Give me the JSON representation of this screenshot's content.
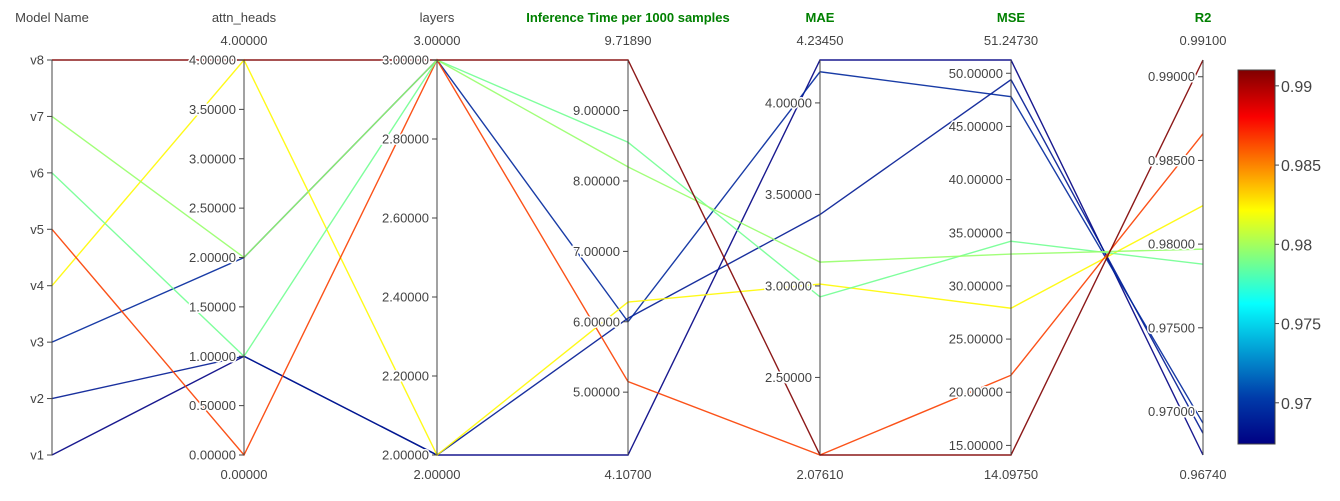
{
  "chart_data": {
    "type": "parallel_coordinates",
    "axes": [
      {
        "id": "model_name",
        "label": "Model Name",
        "label_color": "#444444",
        "categorical": true,
        "categories": [
          "v1",
          "v2",
          "v3",
          "v4",
          "v5",
          "v6",
          "v7",
          "v8"
        ],
        "range_min_label": "",
        "range_max_label": ""
      },
      {
        "id": "attn_heads",
        "label": "attn_heads",
        "label_color": "#444444",
        "range": [
          0,
          4
        ],
        "range_min_label": "0.00000",
        "range_max_label": "4.00000",
        "ticks": [
          {
            "value": 0,
            "label": "0.00000"
          },
          {
            "value": 0.5,
            "label": "0.50000"
          },
          {
            "value": 1,
            "label": "1.00000"
          },
          {
            "value": 1.5,
            "label": "1.50000"
          },
          {
            "value": 2,
            "label": "2.00000"
          },
          {
            "value": 2.5,
            "label": "2.50000"
          },
          {
            "value": 3,
            "label": "3.00000"
          },
          {
            "value": 3.5,
            "label": "3.50000"
          },
          {
            "value": 4,
            "label": "4.00000"
          }
        ]
      },
      {
        "id": "layers",
        "label": "layers",
        "label_color": "#444444",
        "range": [
          2,
          3
        ],
        "range_min_label": "2.00000",
        "range_max_label": "3.00000",
        "ticks": [
          {
            "value": 2,
            "label": "2.00000"
          },
          {
            "value": 2.2,
            "label": "2.20000"
          },
          {
            "value": 2.4,
            "label": "2.40000"
          },
          {
            "value": 2.6,
            "label": "2.60000"
          },
          {
            "value": 2.8,
            "label": "2.80000"
          },
          {
            "value": 3,
            "label": "3.00000"
          }
        ]
      },
      {
        "id": "inference_time",
        "label": "Inference Time per 1000 samples",
        "label_color": "#008000",
        "label_bold": true,
        "range": [
          4.107,
          9.7189
        ],
        "range_min_label": "4.10700",
        "range_max_label": "9.71890",
        "ticks": [
          {
            "value": 5,
            "label": "5.00000"
          },
          {
            "value": 6,
            "label": "6.00000"
          },
          {
            "value": 7,
            "label": "7.00000"
          },
          {
            "value": 8,
            "label": "8.00000"
          },
          {
            "value": 9,
            "label": "9.00000"
          }
        ]
      },
      {
        "id": "mae",
        "label": "MAE",
        "label_color": "#008000",
        "label_bold": true,
        "range": [
          2.0761,
          4.2345
        ],
        "range_min_label": "2.07610",
        "range_max_label": "4.23450",
        "ticks": [
          {
            "value": 2.5,
            "label": "2.50000"
          },
          {
            "value": 3,
            "label": "3.00000"
          },
          {
            "value": 3.5,
            "label": "3.50000"
          },
          {
            "value": 4,
            "label": "4.00000"
          }
        ]
      },
      {
        "id": "mse",
        "label": "MSE",
        "label_color": "#008000",
        "label_bold": true,
        "range": [
          14.0975,
          51.2473
        ],
        "range_min_label": "14.09750",
        "range_max_label": "51.24730",
        "ticks": [
          {
            "value": 15,
            "label": "15.00000"
          },
          {
            "value": 20,
            "label": "20.00000"
          },
          {
            "value": 25,
            "label": "25.00000"
          },
          {
            "value": 30,
            "label": "30.00000"
          },
          {
            "value": 35,
            "label": "35.00000"
          },
          {
            "value": 40,
            "label": "40.00000"
          },
          {
            "value": 45,
            "label": "45.00000"
          },
          {
            "value": 50,
            "label": "50.00000"
          }
        ]
      },
      {
        "id": "r2",
        "label": "R2",
        "label_color": "#008000",
        "label_bold": true,
        "range": [
          0.9674,
          0.991
        ],
        "range_min_label": "0.96740",
        "range_max_label": "0.99100",
        "ticks": [
          {
            "value": 0.97,
            "label": "0.97000"
          },
          {
            "value": 0.975,
            "label": "0.97500"
          },
          {
            "value": 0.98,
            "label": "0.98000"
          },
          {
            "value": 0.985,
            "label": "0.98500"
          },
          {
            "value": 0.99,
            "label": "0.99000"
          }
        ]
      }
    ],
    "lines": [
      {
        "model": "v1",
        "attn_heads": 1,
        "layers": 2,
        "inference_time": 4.107,
        "mae": 4.2345,
        "mse": 51.2473,
        "r2": 0.9674
      },
      {
        "model": "v2",
        "attn_heads": 1,
        "layers": 2,
        "inference_time": 6.05,
        "mae": 3.39,
        "mse": 49.4,
        "r2": 0.9687
      },
      {
        "model": "v3",
        "attn_heads": 2,
        "layers": 3,
        "inference_time": 6.0,
        "mae": 4.17,
        "mse": 47.8,
        "r2": 0.9693
      },
      {
        "model": "v4",
        "attn_heads": 4,
        "layers": 2,
        "inference_time": 6.28,
        "mae": 3.01,
        "mse": 27.9,
        "r2": 0.9823
      },
      {
        "model": "v5",
        "attn_heads": 0,
        "layers": 3,
        "inference_time": 5.15,
        "mae": 2.0761,
        "mse": 21.6,
        "r2": 0.9866
      },
      {
        "model": "v6",
        "attn_heads": 1,
        "layers": 3,
        "inference_time": 8.55,
        "mae": 2.94,
        "mse": 34.2,
        "r2": 0.9788
      },
      {
        "model": "v7",
        "attn_heads": 2,
        "layers": 3,
        "inference_time": 8.2,
        "mae": 3.13,
        "mse": 33.0,
        "r2": 0.9797
      },
      {
        "model": "v8",
        "attn_heads": 4,
        "layers": 3,
        "inference_time": 9.7189,
        "mae": 2.0761,
        "mse": 14.0975,
        "r2": 0.991
      }
    ],
    "colorscale": {
      "name": "Jet",
      "by": "r2",
      "range": [
        0.9674,
        0.991
      ],
      "stops": [
        "#000083",
        "#003caa",
        "#05ffff",
        "#ffff00",
        "#fa0000",
        "#800000"
      ],
      "ticks": [
        {
          "value": 0.97,
          "label": "0.97"
        },
        {
          "value": 0.975,
          "label": "0.975"
        },
        {
          "value": 0.98,
          "label": "0.98"
        },
        {
          "value": 0.985,
          "label": "0.985"
        },
        {
          "value": 0.99,
          "label": "0.99"
        }
      ]
    }
  }
}
